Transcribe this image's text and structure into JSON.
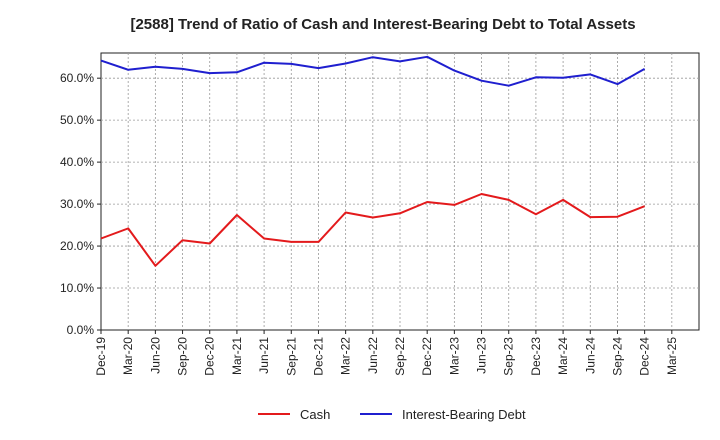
{
  "chart_data": {
    "type": "line",
    "title": "[2588]  Trend of Ratio of Cash and Interest-Bearing Debt to Total Assets",
    "xlabel": "",
    "ylabel": "",
    "ylim": [
      0,
      66
    ],
    "yticks": [
      0,
      10,
      20,
      30,
      40,
      50,
      60
    ],
    "ytick_labels": [
      "0.0%",
      "10.0%",
      "20.0%",
      "30.0%",
      "40.0%",
      "50.0%",
      "60.0%"
    ],
    "x": [
      "Dec-19",
      "Mar-20",
      "Jun-20",
      "Sep-20",
      "Dec-20",
      "Mar-21",
      "Jun-21",
      "Sep-21",
      "Dec-21",
      "Mar-22",
      "Jun-22",
      "Sep-22",
      "Dec-22",
      "Mar-23",
      "Jun-23",
      "Sep-23",
      "Dec-23",
      "Mar-24",
      "Jun-24",
      "Sep-24",
      "Dec-24",
      "Mar-25"
    ],
    "grid": true,
    "legend_position": "bottom",
    "series": [
      {
        "name": "Cash",
        "color": "#e31a1c",
        "values": [
          21.8,
          24.2,
          15.3,
          21.4,
          20.6,
          27.4,
          21.8,
          21.0,
          21.0,
          28.0,
          26.8,
          27.8,
          30.5,
          29.8,
          32.4,
          31.0,
          27.6,
          31.0,
          26.9,
          27.0,
          29.5,
          null
        ]
      },
      {
        "name": "Interest-Bearing Debt",
        "color": "#1f1fcf",
        "values": [
          64.2,
          62.0,
          62.7,
          62.2,
          61.2,
          61.4,
          63.7,
          63.4,
          62.4,
          63.5,
          65.0,
          64.0,
          65.1,
          61.8,
          59.4,
          58.2,
          60.2,
          60.1,
          60.9,
          58.6,
          62.2,
          null
        ]
      }
    ]
  }
}
